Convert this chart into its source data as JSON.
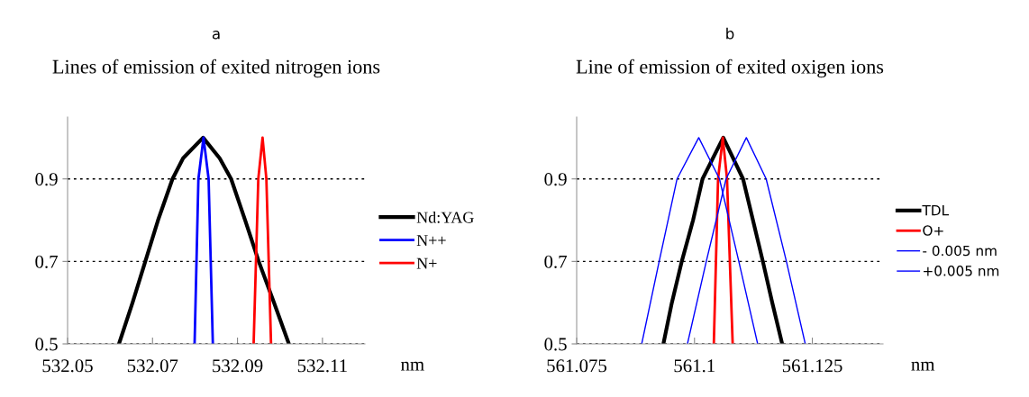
{
  "chart_data": [
    {
      "type": "line",
      "subtitle": "a",
      "title": "Lines of emission of exited nitrogen ions",
      "xlabel": "nm",
      "xlim": [
        532.05,
        532.12
      ],
      "xticks": [
        532.05,
        532.07,
        532.09,
        532.11
      ],
      "ylim": [
        0.5,
        1.05
      ],
      "yticks": [
        0.5,
        0.7,
        0.9
      ],
      "grid": "y",
      "legend": "right",
      "series": [
        {
          "name": "Nd:YAG",
          "color": "#000000",
          "x": [
            532.0621,
            532.0653,
            532.0683,
            532.0713,
            532.0747,
            532.0772,
            532.0819,
            532.0858,
            532.0885,
            532.0918,
            532.095,
            532.0986,
            532.1021
          ],
          "values": [
            0.5,
            0.6,
            0.7,
            0.8,
            0.9,
            0.95,
            1.0,
            0.95,
            0.9,
            0.8,
            0.7,
            0.6,
            0.5
          ]
        },
        {
          "name": "N++",
          "color": "#0000ff",
          "x": [
            532.0799,
            532.0808,
            532.082,
            532.0832,
            532.0842
          ],
          "values": [
            0.5,
            0.9,
            1.0,
            0.9,
            0.5
          ]
        },
        {
          "name": "N+",
          "color": "#ff0000",
          "x": [
            532.0938,
            532.0949,
            532.0959,
            532.0968,
            532.0979
          ],
          "values": [
            0.5,
            0.9,
            1.0,
            0.9,
            0.5
          ]
        }
      ]
    },
    {
      "type": "line",
      "subtitle": "b",
      "title": "Line of emission of exited oxigen ions",
      "xlabel": "nm",
      "xlim": [
        561.075,
        561.14
      ],
      "xticks": [
        561.075,
        561.1,
        561.125
      ],
      "ylim": [
        0.5,
        1.05
      ],
      "yticks": [
        0.5,
        0.7,
        0.9
      ],
      "grid": "y",
      "legend": "right",
      "series": [
        {
          "name": "TDL",
          "color": "#000000",
          "x": [
            561.0934,
            561.0952,
            561.0973,
            561.0997,
            561.1017,
            561.1061,
            561.1103,
            561.1124,
            561.1145,
            561.1165,
            561.1186
          ],
          "values": [
            0.5,
            0.6,
            0.7,
            0.8,
            0.9,
            1.0,
            0.9,
            0.8,
            0.7,
            0.6,
            0.5
          ]
        },
        {
          "name": "O+",
          "color": "#ff0000",
          "x": [
            561.1041,
            561.105,
            561.106,
            561.1069,
            561.1081
          ],
          "values": [
            0.5,
            0.9,
            1.0,
            0.9,
            0.5
          ]
        },
        {
          "name": "- 0.005 nm",
          "color": "#0000ff",
          "x": [
            561.0888,
            561.0925,
            561.0963,
            561.1009,
            561.1053,
            561.1094,
            561.1134
          ],
          "values": [
            0.5,
            0.7,
            0.9,
            1.0,
            0.9,
            0.7,
            0.5
          ]
        },
        {
          "name": "+0.005 nm",
          "color": "#0000ff",
          "x": [
            561.0985,
            561.1025,
            561.1067,
            561.111,
            561.1152,
            561.1195,
            561.1235
          ],
          "values": [
            0.5,
            0.7,
            0.9,
            1.0,
            0.9,
            0.7,
            0.5
          ]
        }
      ]
    }
  ]
}
